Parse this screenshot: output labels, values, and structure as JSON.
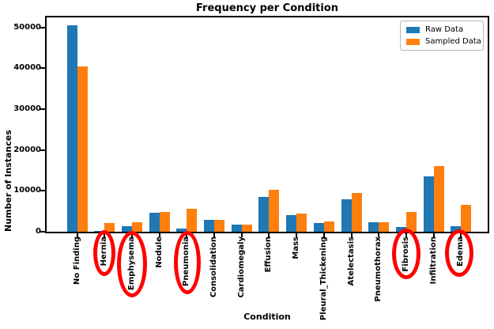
{
  "chart_data": {
    "type": "bar",
    "title": "Frequency per Condition",
    "xlabel": "Condition",
    "ylabel": "Number of Instances",
    "ylim": [
      0,
      52500
    ],
    "yticks": [
      0,
      10000,
      20000,
      30000,
      40000,
      50000
    ],
    "grid": false,
    "legend_position": "upper right",
    "categories": [
      "No Finding",
      "Hernia",
      "Emphysema",
      "Nodule",
      "Pneumonia",
      "Consolidation",
      "Cardiomegaly",
      "Effusion",
      "Mass",
      "Pleural_Thickening",
      "Atelectasis",
      "Pneumothorax",
      "Fibrosis",
      "Infiltration",
      "Edema"
    ],
    "series": [
      {
        "name": "Raw Data",
        "color": "#1f77b4",
        "values": [
          50500,
          230,
          1400,
          4600,
          800,
          2900,
          1800,
          8500,
          4000,
          2100,
          8000,
          2400,
          1200,
          13500,
          1300
        ]
      },
      {
        "name": "Sampled Data",
        "color": "#ff7f0e",
        "values": [
          40400,
          2200,
          2250,
          4800,
          5700,
          3000,
          1800,
          10300,
          4500,
          2600,
          9400,
          2400,
          4900,
          16000,
          6500
        ]
      }
    ],
    "annotations": {
      "circled_categories": [
        "Hernia",
        "Emphysema",
        "Pneumonia",
        "Fibrosis",
        "Edema"
      ],
      "circle_color": "#ff0000"
    }
  }
}
